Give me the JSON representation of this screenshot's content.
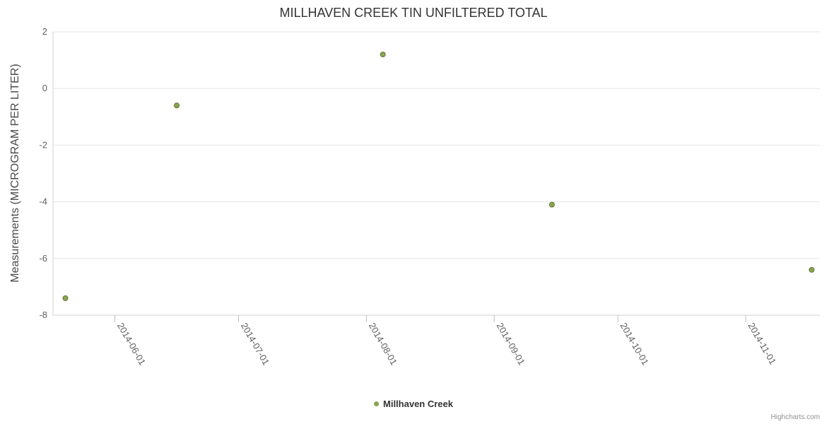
{
  "title": "MILLHAVEN CREEK TIN UNFILTERED TOTAL",
  "legend": {
    "label": "Millhaven Creek"
  },
  "credits": "Highcharts.com",
  "chart_data": {
    "type": "scatter",
    "title": "MILLHAVEN CREEK TIN UNFILTERED TOTAL",
    "xlabel": "",
    "ylabel": "Measurements (MICROGRAM PER LITER)",
    "ylim": [
      -8,
      2
    ],
    "y_ticks": [
      2,
      0,
      -2,
      -4,
      -6,
      -8
    ],
    "xlim": [
      "2014-05-17",
      "2014-11-19"
    ],
    "x_tick_labels": [
      "2014-06-01",
      "2014-07-01",
      "2014-08-01",
      "2014-09-01",
      "2014-10-01",
      "2014-11-01"
    ],
    "grid": "horizontal",
    "legend_position": "bottom",
    "colors": {
      "grid": "#e6e6e6",
      "axis_line": "#d0d0d0",
      "tick_mark": "#c0c0c0",
      "tick_label": "#606060"
    },
    "series": [
      {
        "name": "Millhaven Creek",
        "color": "#89A54E",
        "marker_stroke": "#5f7434",
        "points": [
          {
            "x": "2014-05-20",
            "y": -7.4
          },
          {
            "x": "2014-06-16",
            "y": -0.6
          },
          {
            "x": "2014-08-05",
            "y": 1.2
          },
          {
            "x": "2014-09-15",
            "y": -4.1
          },
          {
            "x": "2014-11-17",
            "y": -6.4
          }
        ]
      }
    ]
  }
}
